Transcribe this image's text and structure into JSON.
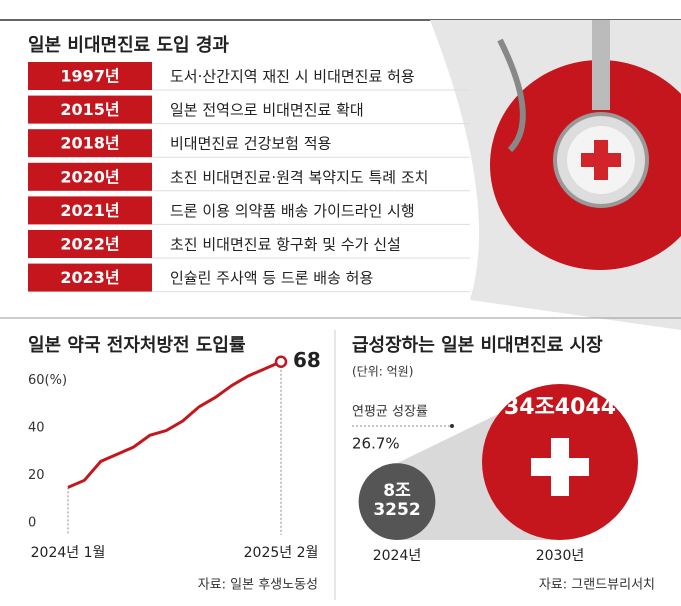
{
  "timeline": {
    "title": "일본 비대면진료 도입 경과",
    "rows": [
      {
        "year": "1997년",
        "event": "도서·산간지역 재진 시 비대면진료 허용"
      },
      {
        "year": "2015년",
        "event": "일본 전역으로 비대면진료 확대"
      },
      {
        "year": "2018년",
        "event": "비대면진료 건강보험 적용"
      },
      {
        "year": "2020년",
        "event": "초진 비대면진료·원격 복약지도 특례 조치"
      },
      {
        "year": "2021년",
        "event": "드론 이용 의약품 배송 가이드라인 시행"
      },
      {
        "year": "2022년",
        "event": "초진 비대면진료 항구화 및 수가 신설"
      },
      {
        "year": "2023년",
        "event": "인슐린 주사액 등 드론 배송 허용"
      }
    ]
  },
  "chart_data": [
    {
      "type": "line",
      "title": "일본 약국 전자처방전 도입률",
      "categories": [
        "2024년 1월",
        null,
        null,
        null,
        null,
        null,
        null,
        null,
        null,
        null,
        null,
        null,
        null,
        "2025년 2월"
      ],
      "values": [
        15,
        18,
        26,
        29,
        32,
        37,
        39,
        43,
        49,
        53,
        58,
        62,
        65,
        68
      ],
      "color": "#c4161c",
      "ylim": [
        0,
        70
      ],
      "yticks": [
        0,
        20,
        40,
        {
          "value": 60,
          "label": "60(%)"
        }
      ],
      "source": "자료: 일본 후생노동성"
    },
    {
      "type": "bubble",
      "title": "급성장하는 일본 비대면진료 시장",
      "unit": "(단위: 억원)",
      "categories": [
        "2024년",
        "2030년"
      ],
      "values": [
        83252,
        344044
      ],
      "value_labels": [
        "8조 3252",
        "34조4044"
      ],
      "colors": [
        "#555555",
        "#c4161c"
      ],
      "annotation": {
        "label": "연평균 성장률",
        "value": "26.7%"
      },
      "source": "자료: 그랜드뷰리서치"
    }
  ]
}
